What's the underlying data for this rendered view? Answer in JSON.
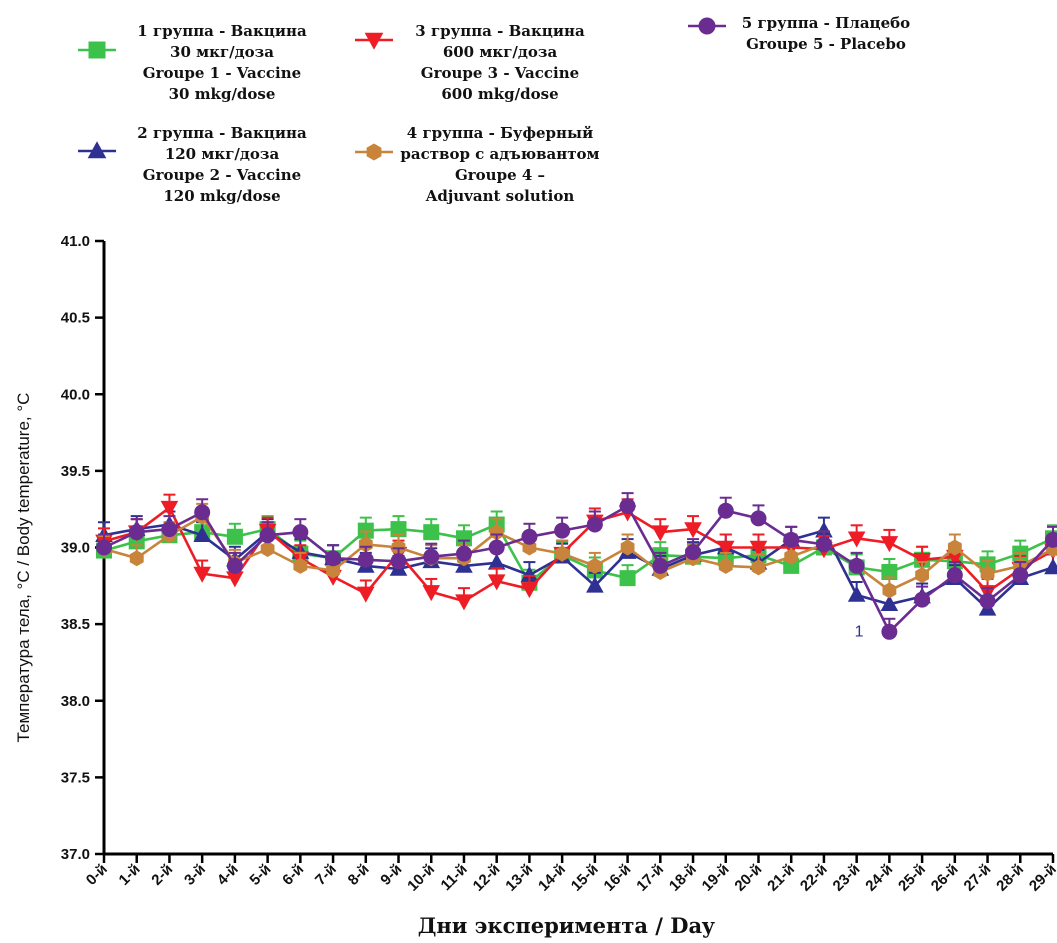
{
  "chart_data": {
    "type": "line",
    "xlabel": "Дни эксперимента / Day",
    "ylabel": "Температура тела, °C / Body temperature, °C",
    "ylim": [
      37.0,
      41.0
    ],
    "yticks": [
      "37.0",
      "37.5",
      "38.0",
      "38.5",
      "39.0",
      "39.5",
      "40.0",
      "40.5",
      "41.0"
    ],
    "categories": [
      "0-й",
      "1-й",
      "2-й",
      "3-й",
      "4-й",
      "5-й",
      "6-й",
      "7-й",
      "8-й",
      "9-й",
      "10-й",
      "11-й",
      "12-й",
      "13-й",
      "14-й",
      "15-й",
      "16-й",
      "17-й",
      "18-й",
      "19-й",
      "20-й",
      "21-й",
      "22-й",
      "23-й",
      "24-й",
      "25-й",
      "26-й",
      "27-й",
      "28-й",
      "29-й"
    ],
    "grid": false,
    "legend_position": "top",
    "annotation": "1",
    "series": [
      {
        "name": [
          "1 группа - Вакцина",
          "30 мкг/доза",
          "Groupe 1 - Vaccine",
          "30 mkg/dose"
        ],
        "color": "#3cc24a",
        "marker": "square",
        "values": [
          38.98,
          39.04,
          39.08,
          39.1,
          39.07,
          39.12,
          38.96,
          38.93,
          39.11,
          39.12,
          39.1,
          39.06,
          39.15,
          38.77,
          38.95,
          38.85,
          38.8,
          38.95,
          38.94,
          38.93,
          38.95,
          38.88,
          39.0,
          38.87,
          38.84,
          38.92,
          38.91,
          38.89,
          38.96,
          39.06
        ]
      },
      {
        "name": [
          "2 группа - Вакцина",
          "120 мкг/доза",
          "Groupe 2 - Vaccine",
          "120 mkg/dose"
        ],
        "color": "#2e3192",
        "marker": "triangle-up",
        "values": [
          39.08,
          39.12,
          39.15,
          39.08,
          38.92,
          39.1,
          38.97,
          38.93,
          38.88,
          38.86,
          38.91,
          38.88,
          38.9,
          38.82,
          38.94,
          38.75,
          38.97,
          38.86,
          38.95,
          39.0,
          38.9,
          39.05,
          39.11,
          38.69,
          38.63,
          38.68,
          38.8,
          38.6,
          38.8,
          38.87
        ]
      },
      {
        "name": [
          "3 группа - Вакцина",
          "600 мкг/доза",
          "Groupe 3 - Vaccine",
          "600 mkg/dose"
        ],
        "color": "#ee1c25",
        "marker": "triangle-down",
        "values": [
          39.04,
          39.1,
          39.26,
          38.83,
          38.8,
          39.11,
          38.93,
          38.81,
          38.7,
          38.96,
          38.71,
          38.65,
          38.78,
          38.73,
          38.96,
          39.17,
          39.23,
          39.1,
          39.12,
          39.0,
          39.0,
          39.0,
          38.99,
          39.06,
          39.03,
          38.92,
          38.94,
          38.71,
          38.86,
          38.98
        ]
      },
      {
        "name": [
          "4 группа - Буферный",
          "раствор с адъювантом",
          "Groupe 4 –",
          "Adjuvant solution"
        ],
        "color": "#c8843a",
        "marker": "hexagon",
        "values": [
          38.99,
          38.93,
          39.08,
          39.2,
          38.9,
          38.99,
          38.88,
          38.85,
          39.02,
          39.0,
          38.93,
          38.93,
          39.1,
          39.0,
          38.96,
          38.88,
          39.0,
          38.84,
          38.93,
          38.88,
          38.87,
          38.94,
          39.02,
          38.88,
          38.72,
          38.82,
          39.0,
          38.83,
          38.88,
          38.99
        ]
      },
      {
        "name": [
          "5 группа - Плацебо",
          "Groupe 5 - Placebo"
        ],
        "color": "#6a2c91",
        "marker": "circle",
        "values": [
          39.0,
          39.1,
          39.12,
          39.23,
          38.88,
          39.08,
          39.1,
          38.93,
          38.92,
          38.91,
          38.94,
          38.96,
          39.0,
          39.07,
          39.11,
          39.15,
          39.27,
          38.88,
          38.97,
          39.24,
          39.19,
          39.05,
          39.02,
          38.88,
          38.45,
          38.66,
          38.82,
          38.65,
          38.82,
          39.05
        ]
      }
    ]
  }
}
